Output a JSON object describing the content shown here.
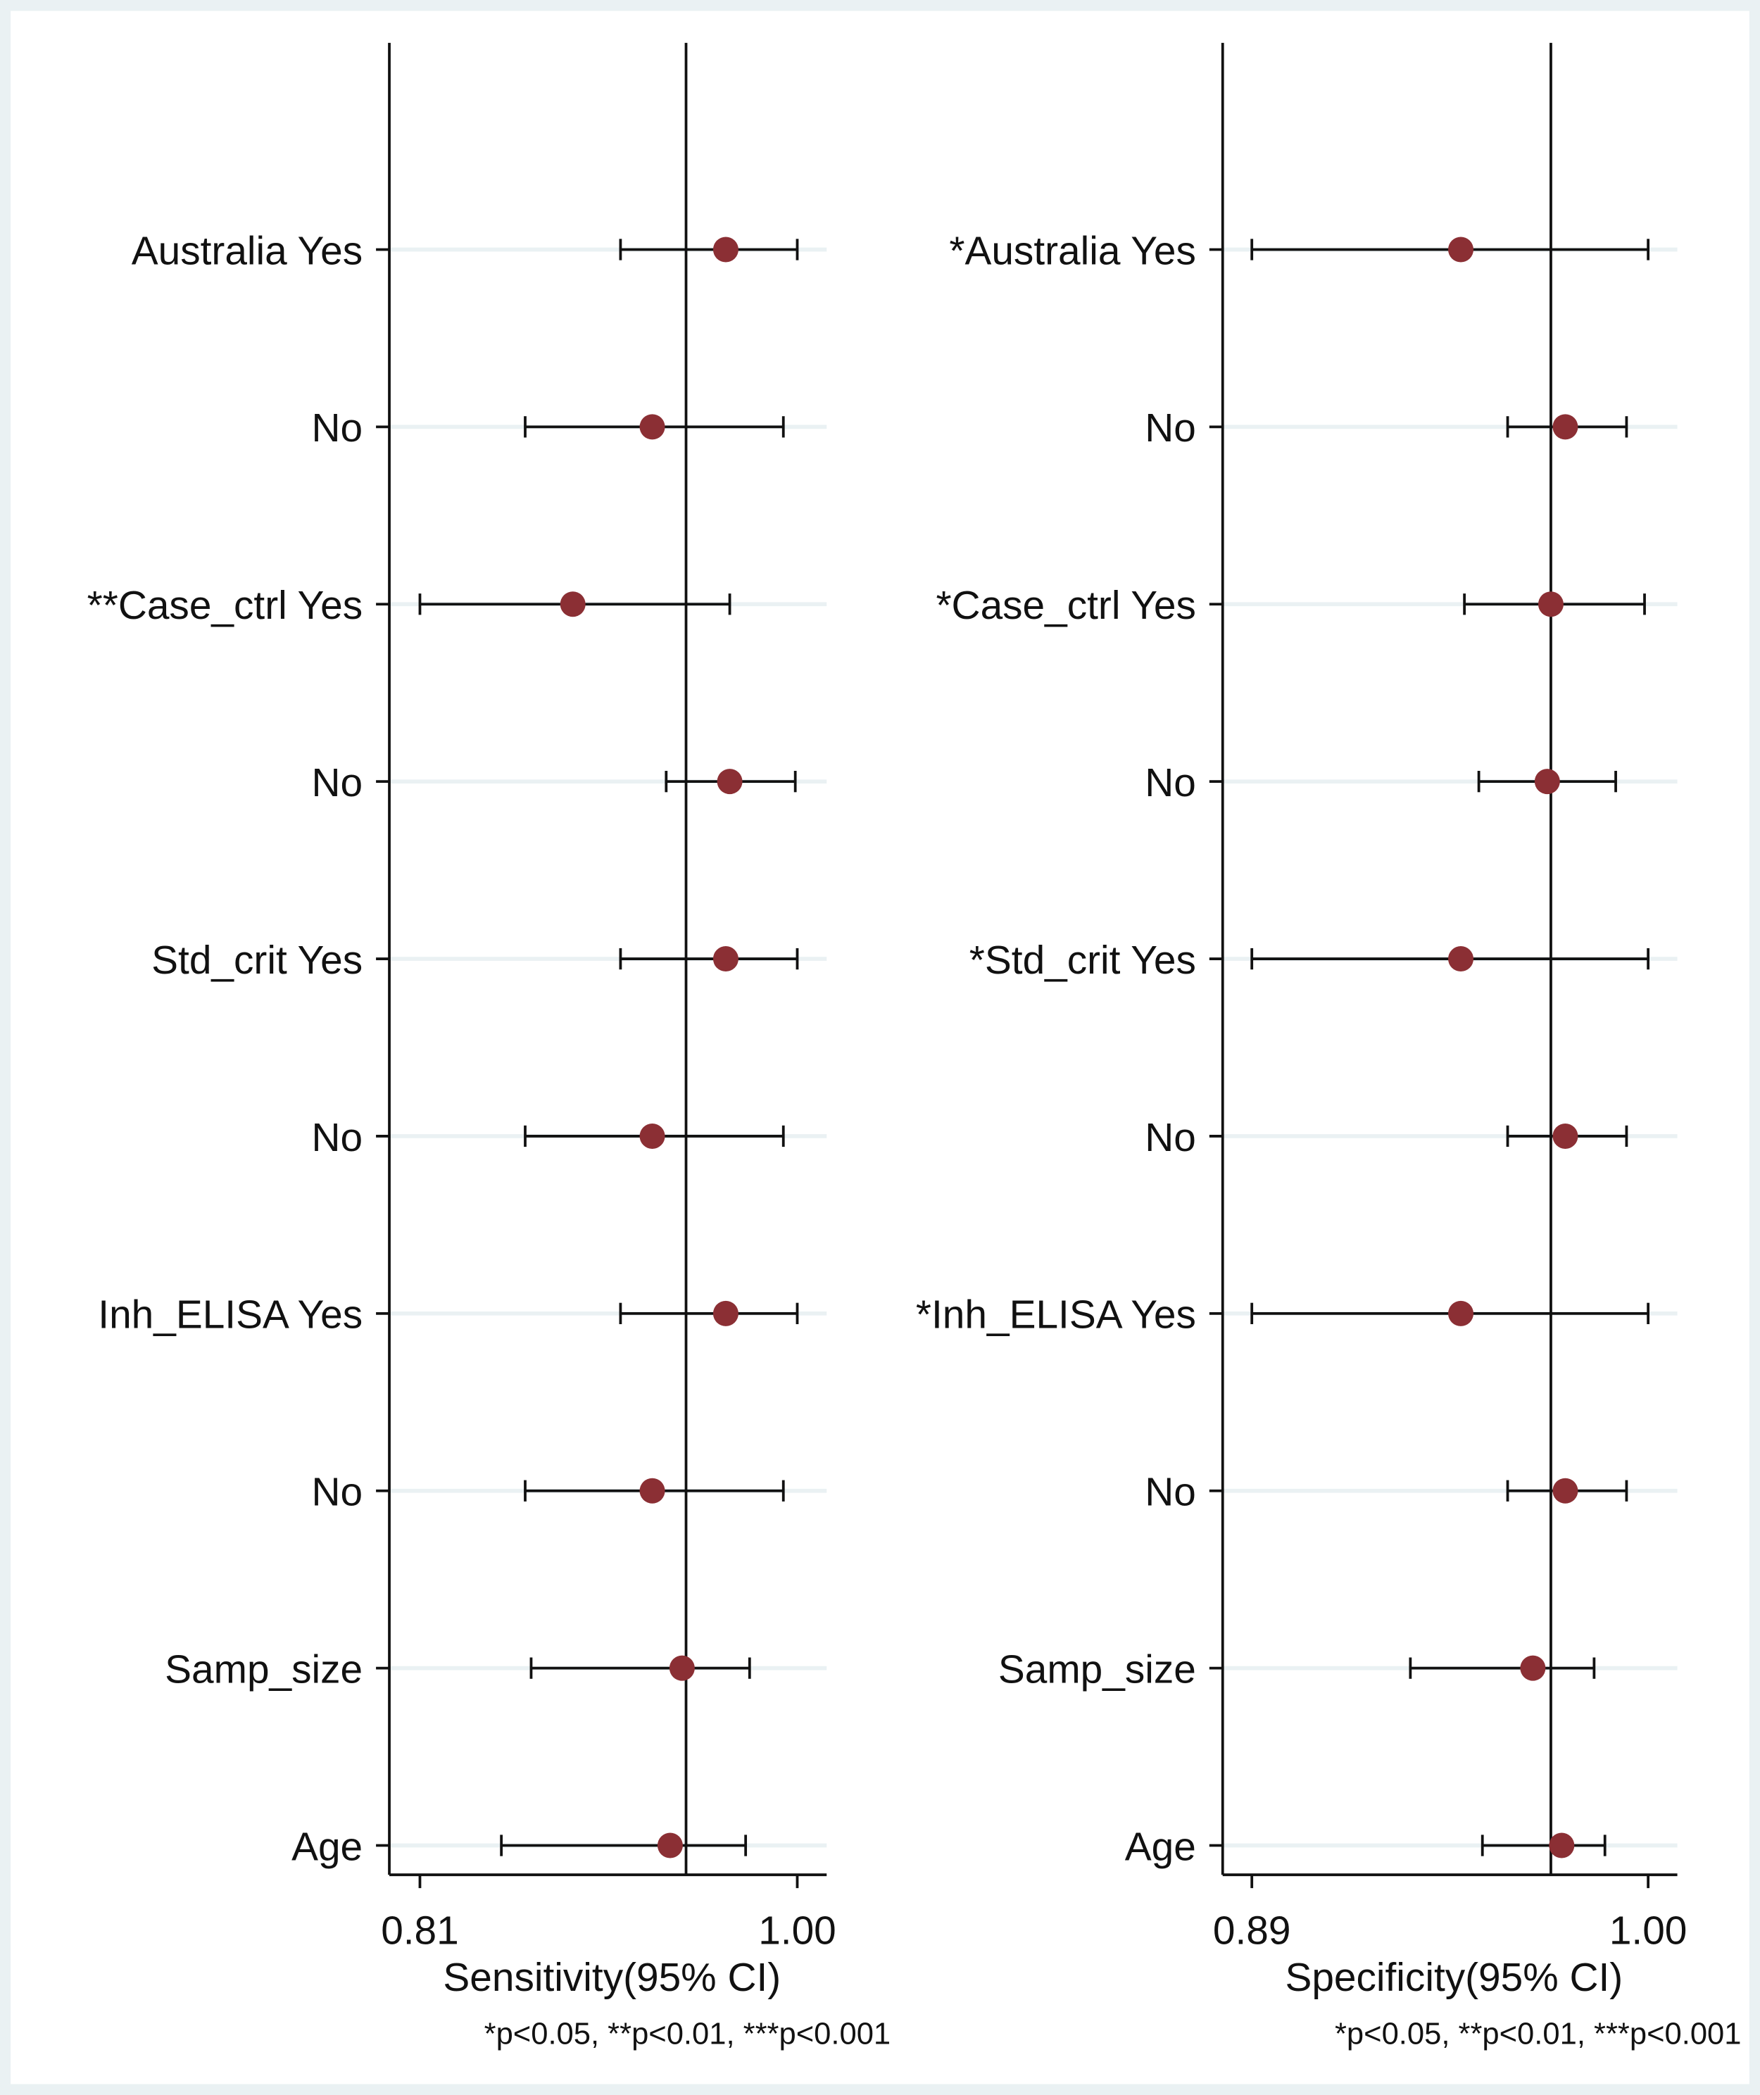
{
  "chart_data": [
    {
      "type": "forest",
      "xlabel": "Sensitivity(95% CI)",
      "note": "*p<0.05, **p<0.01, ***p<0.001",
      "categories": [
        "Australia Yes",
        "No",
        "**Case_ctrl Yes",
        "No",
        "Std_crit Yes",
        "No",
        "Inh_ELISA Yes",
        "No",
        "Samp_size",
        "Age"
      ],
      "values": [
        0.964,
        0.927,
        0.887,
        0.966,
        0.964,
        0.927,
        0.964,
        0.927,
        0.942,
        0.936
      ],
      "lower": [
        0.911,
        0.863,
        0.81,
        0.934,
        0.911,
        0.863,
        0.911,
        0.863,
        0.866,
        0.851
      ],
      "upper": [
        1.0,
        0.993,
        0.966,
        0.999,
        1.0,
        0.993,
        1.0,
        0.993,
        0.976,
        0.974
      ],
      "reference_line": 0.944,
      "xlim": [
        0.7946,
        1.0148
      ],
      "xticks": [
        0.81,
        {
          "value": 1.0,
          "label": "1.00"
        }
      ],
      "color": "#8b2f34"
    },
    {
      "type": "forest",
      "xlabel": "Specificity(95% CI)",
      "note": "*p<0.05, **p<0.01, ***p<0.001",
      "categories": [
        "*Australia Yes",
        "No",
        "*Case_ctrl Yes",
        "No",
        "*Std_crit Yes",
        "No",
        "*Inh_ELISA Yes",
        "No",
        "Samp_size",
        "Age"
      ],
      "values": [
        0.948,
        0.977,
        0.973,
        0.972,
        0.948,
        0.977,
        0.948,
        0.977,
        0.968,
        0.976
      ],
      "lower": [
        0.89,
        0.961,
        0.949,
        0.953,
        0.89,
        0.961,
        0.89,
        0.961,
        0.934,
        0.954
      ],
      "upper": [
        1.0,
        0.994,
        0.999,
        0.991,
        1.0,
        0.994,
        1.0,
        0.994,
        0.985,
        0.988
      ],
      "reference_line": 0.973,
      "xlim": [
        0.8819,
        1.0081
      ],
      "xticks": [
        0.89,
        {
          "value": 1.0,
          "label": "1.00"
        }
      ],
      "color": "#8b2f34"
    }
  ]
}
